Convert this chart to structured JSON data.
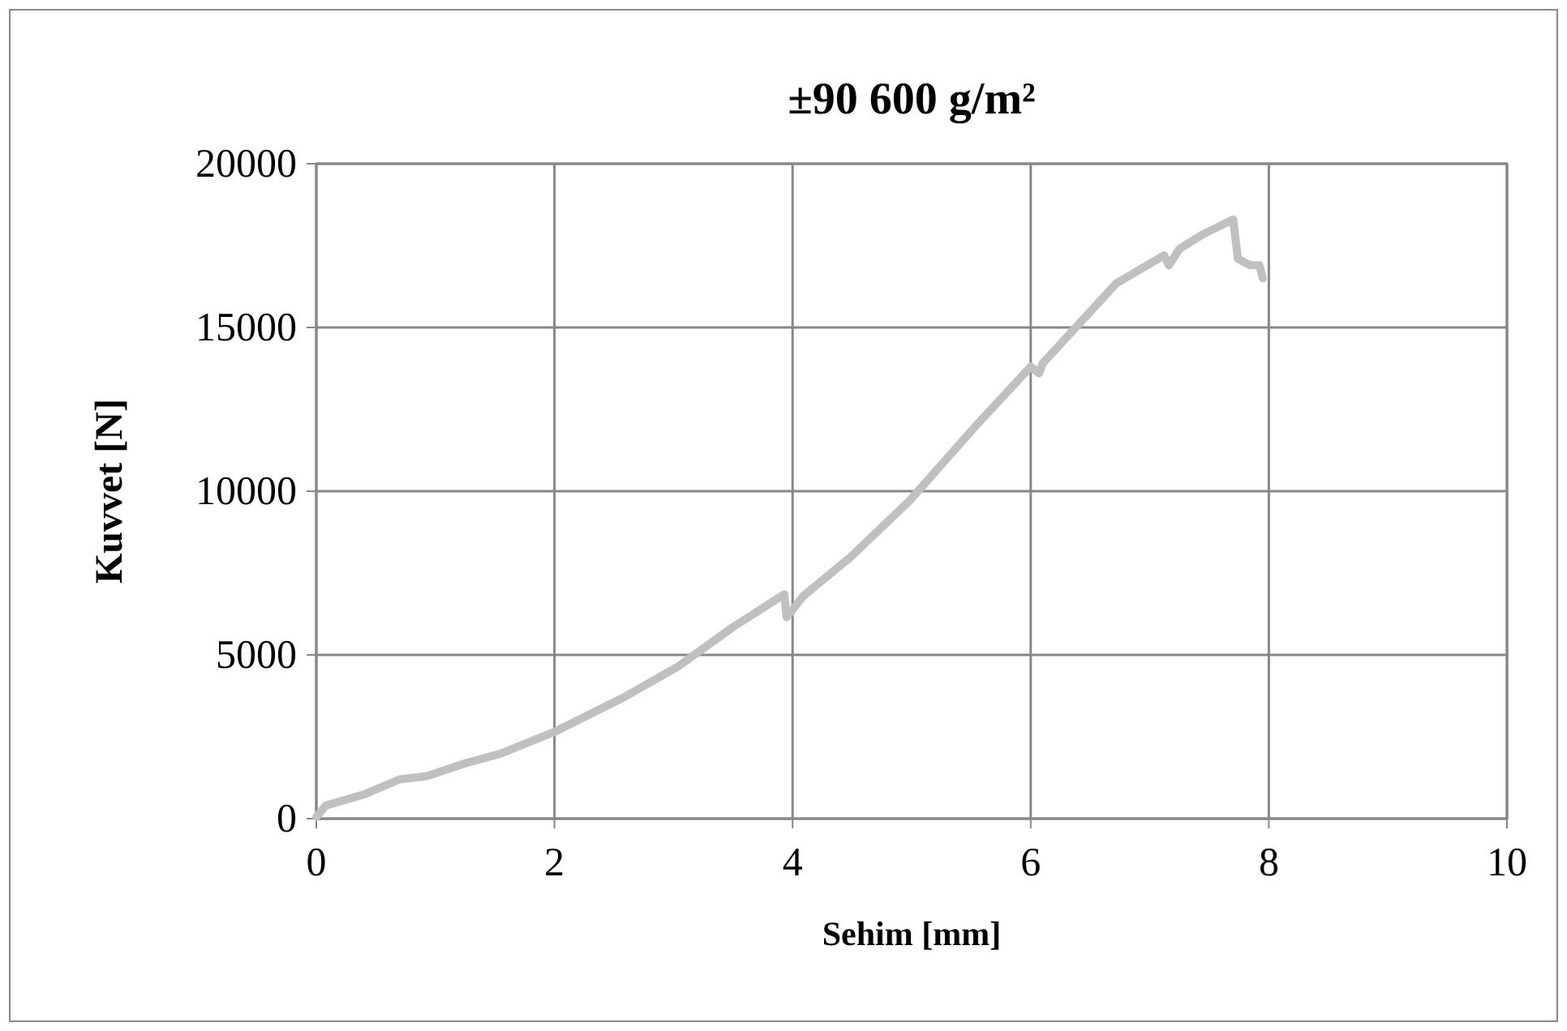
{
  "chart_data": {
    "type": "line",
    "title": "±90 600 g/m²",
    "xlabel": "Sehim [mm]",
    "ylabel": "Kuvvet [N]",
    "xlim": [
      0,
      10
    ],
    "xticks": [
      0,
      2,
      4,
      6,
      8,
      10
    ],
    "ylim": [
      0,
      20000
    ],
    "yticks": [
      0,
      5000,
      10000,
      15000,
      20000
    ],
    "grid": true,
    "marker": "none",
    "line_style": "solid",
    "series": [
      {
        "color": "#c0c0c0",
        "x": [
          0,
          0.08,
          0.41,
          0.7,
          0.93,
          1.26,
          1.56,
          2,
          2.58,
          3.04,
          3.5,
          3.93,
          3.95,
          4.09,
          4.49,
          4.98,
          5.54,
          6.0,
          6.07,
          6.1,
          6.72,
          7.12,
          7.16,
          7.25,
          7.45,
          7.7,
          7.74,
          7.84,
          7.92,
          7.95
        ],
        "values": [
          50,
          400,
          750,
          1200,
          1300,
          1700,
          2000,
          2650,
          3700,
          4650,
          5850,
          6850,
          6150,
          6800,
          8000,
          9700,
          12000,
          13800,
          13600,
          13900,
          16350,
          17200,
          16900,
          17400,
          17850,
          18300,
          17100,
          16900,
          16900,
          16500
        ]
      }
    ]
  }
}
